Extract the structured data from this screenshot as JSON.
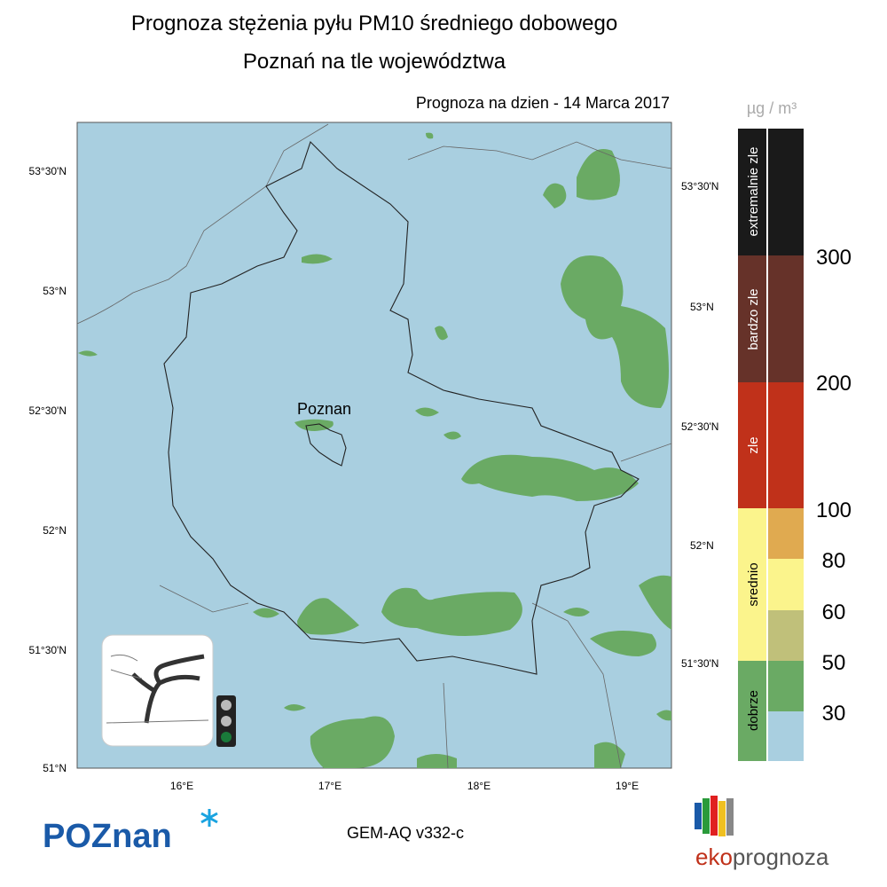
{
  "header": {
    "title": "Prognoza stężenia pyłu PM10 średniego dobowego",
    "subtitle": "Poznań na tle województwa",
    "date": "Prognoza na dzien -  14 Marca 2017"
  },
  "map": {
    "left_ticks": [
      "53°30'N",
      "53°N",
      "52°30'N",
      "52°N",
      "51°30'N",
      "51°N"
    ],
    "right_ticks": [
      "53°30'N",
      "53°N",
      "52°30'N",
      "52°N",
      "51°30'N"
    ],
    "bottom_ticks": [
      "16°E",
      "17°E",
      "18°E",
      "19°E"
    ],
    "city": "Poznan"
  },
  "legend": {
    "unit": "µg / m³",
    "classes": [
      "extremalnie zle",
      "bardzo zle",
      "zle",
      "srednio",
      "dobrze"
    ],
    "thresholds": [
      300,
      200,
      100,
      80,
      60,
      50,
      30
    ]
  },
  "footer": {
    "logo_left": "POZnan",
    "model": "GEM-AQ v332-c",
    "logo_right_a": "eko",
    "logo_right_b": "prognoza"
  }
}
